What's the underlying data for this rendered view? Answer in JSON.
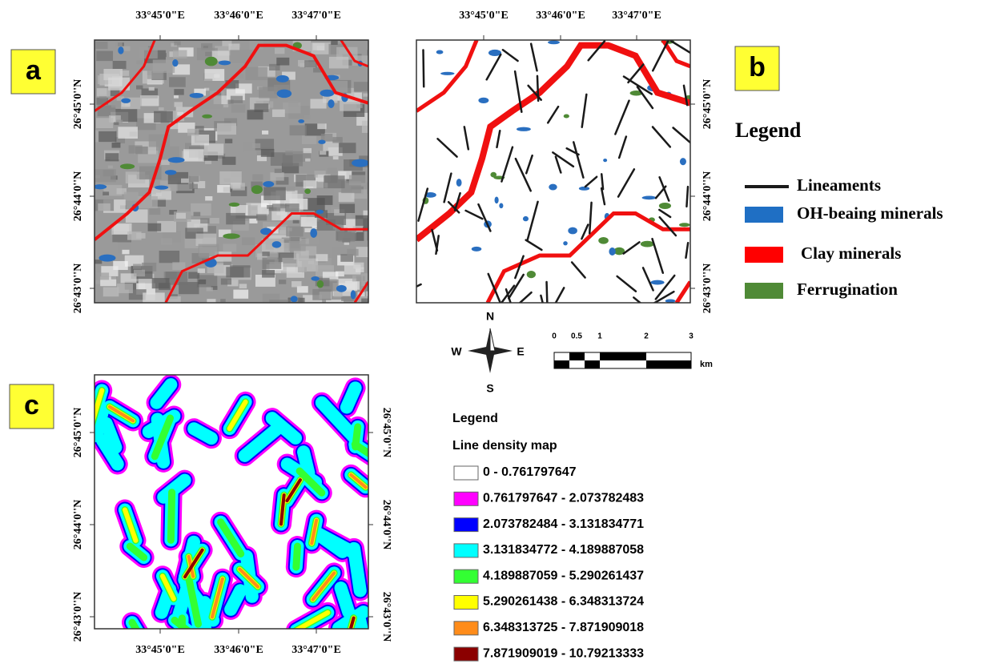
{
  "panels": [
    {
      "label": "a",
      "top_ticks": [
        "33°45'0\"E",
        "33°46'0\"E",
        "33°47'0\"E"
      ],
      "left_ticks": [
        "26°45'0''N",
        "26°44'0''N",
        "26°43'0''N"
      ]
    },
    {
      "label": "b",
      "top_ticks": [
        "33°45'0\"E",
        "33°46'0\"E",
        "33°47'0\"E"
      ],
      "right_ticks": [
        "26°45'0''N",
        "26°44'0''N",
        "26°43'0''N"
      ]
    },
    {
      "label": "c",
      "bottom_ticks": [
        "33°45'0\"E",
        "33°46'0\"E",
        "33°47'0\"E"
      ],
      "left_ticks": [
        "26°45'0''N",
        "26°44'0''N",
        "26°43'0''N"
      ],
      "right_ticks": [
        "26°45'0''N",
        "26°44'0''N",
        "26°43'0''N"
      ]
    }
  ],
  "legend": {
    "title": "Legend",
    "items": [
      {
        "label": "Lineaments",
        "color": "#1a1a1a",
        "kind": "line"
      },
      {
        "label": "OH-beaing minerals",
        "color": "#1f6fc4",
        "kind": "box"
      },
      {
        "label": "Clay minerals",
        "color": "#ff0000",
        "kind": "box"
      },
      {
        "label": "Ferrugination",
        "color": "#4f8a36",
        "kind": "box"
      }
    ]
  },
  "compass": {
    "north": "N",
    "south": "S",
    "east": "E",
    "west": "W"
  },
  "scale_bar": {
    "ticks": [
      "0",
      "0.5",
      "1",
      "2",
      "3"
    ],
    "unit": "km"
  },
  "density_legend": {
    "title": "Legend",
    "subtitle": "Line density map",
    "classes": [
      {
        "label": "0 - 0.761797647",
        "color": "#ffffff"
      },
      {
        "label": "0.761797647 - 2.073782483",
        "color": "#ff00ff"
      },
      {
        "label": "2.073782484 - 3.131834771",
        "color": "#0000ff"
      },
      {
        "label": "3.131834772 - 4.189887058",
        "color": "#00ffff"
      },
      {
        "label": "4.189887059 - 5.290261437",
        "color": "#33ff33"
      },
      {
        "label": "5.290261438 - 6.348313724",
        "color": "#ffff00"
      },
      {
        "label": "6.348313725 - 7.871909018",
        "color": "#ff8c1a"
      },
      {
        "label": "7.871909019 - 10.79213333",
        "color": "#8b0000"
      }
    ]
  }
}
